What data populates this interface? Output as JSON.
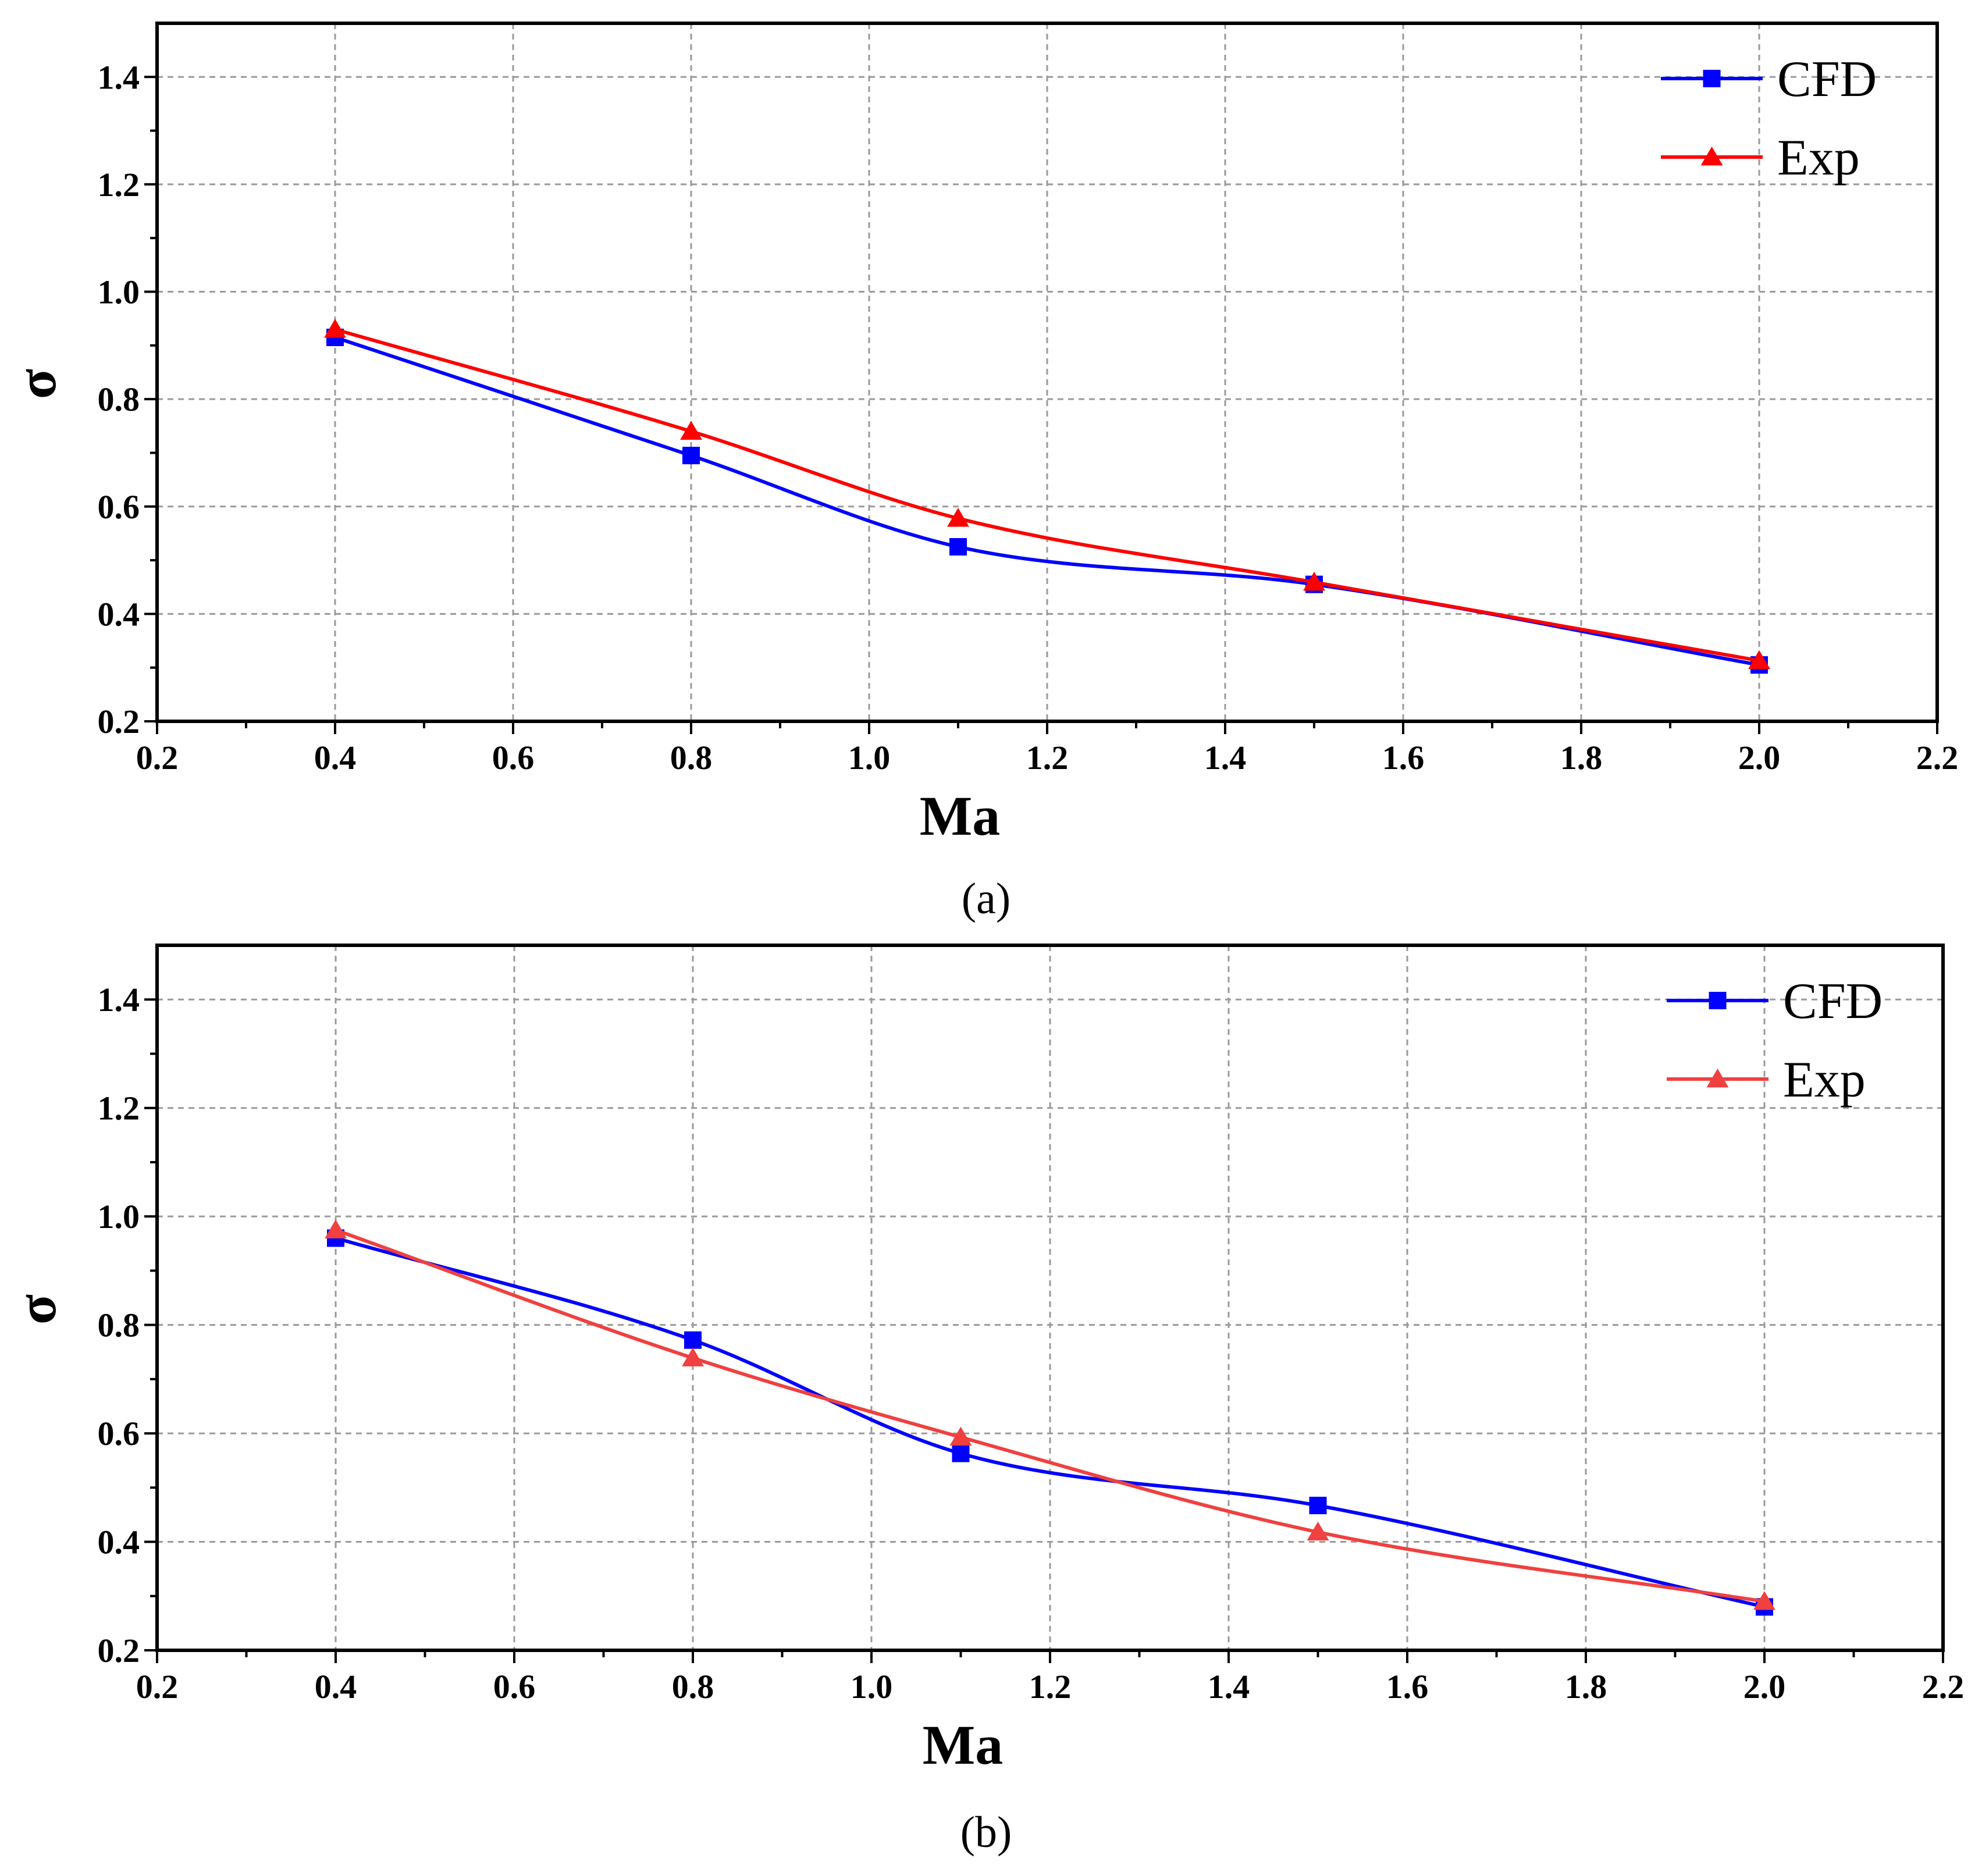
{
  "chart_data": [
    {
      "type": "line",
      "panel_label": "(a)",
      "xlabel": "Ma",
      "ylabel": "σ",
      "xlim": [
        0.2,
        2.2
      ],
      "ylim": [
        0.2,
        1.5
      ],
      "x_ticks": [
        0.2,
        0.4,
        0.6,
        0.8,
        1.0,
        1.2,
        1.4,
        1.6,
        1.8,
        2.0,
        2.2
      ],
      "x_tick_labels": [
        "0.2",
        "0.4",
        "0.6",
        "0.8",
        "1.0",
        "1.2",
        "1.4",
        "1.6",
        "1.8",
        "2.0",
        "2.2"
      ],
      "y_ticks": [
        0.2,
        0.4,
        0.6,
        0.8,
        1.0,
        1.2,
        1.4
      ],
      "y_tick_labels": [
        "0.2",
        "0.4",
        "0.6",
        "0.8",
        "1.0",
        "1.2",
        "1.4"
      ],
      "grid": true,
      "legend_position": "top-right",
      "series": [
        {
          "name": "CFD",
          "color": "#0000ff",
          "marker": "square",
          "x": [
            0.4,
            0.8,
            1.1,
            1.5,
            2.0
          ],
          "values": [
            0.915,
            0.695,
            0.525,
            0.455,
            0.305
          ]
        },
        {
          "name": "Exp",
          "color": "#ff0000",
          "marker": "triangle",
          "x": [
            0.4,
            0.8,
            1.1,
            1.5,
            2.0
          ],
          "values": [
            0.93,
            0.74,
            0.578,
            0.459,
            0.313
          ]
        }
      ]
    },
    {
      "type": "line",
      "panel_label": "(b)",
      "xlabel": "Ma",
      "ylabel": "σ",
      "xlim": [
        0.2,
        2.2
      ],
      "ylim": [
        0.2,
        1.5
      ],
      "x_ticks": [
        0.2,
        0.4,
        0.6,
        0.8,
        1.0,
        1.2,
        1.4,
        1.6,
        1.8,
        2.0,
        2.2
      ],
      "x_tick_labels": [
        "0.2",
        "0.4",
        "0.6",
        "0.8",
        "1.0",
        "1.2",
        "1.4",
        "1.6",
        "1.8",
        "2.0",
        "2.2"
      ],
      "y_ticks": [
        0.2,
        0.4,
        0.6,
        0.8,
        1.0,
        1.2,
        1.4
      ],
      "y_tick_labels": [
        "0.2",
        "0.4",
        "0.6",
        "0.8",
        "1.0",
        "1.2",
        "1.4"
      ],
      "grid": true,
      "legend_position": "top-right",
      "series": [
        {
          "name": "CFD",
          "color": "#0000ff",
          "marker": "square",
          "x": [
            0.4,
            0.8,
            1.1,
            1.5,
            2.0
          ],
          "values": [
            0.96,
            0.772,
            0.563,
            0.467,
            0.28
          ]
        },
        {
          "name": "Exp",
          "color": "#f04040",
          "marker": "triangle",
          "x": [
            0.4,
            0.8,
            1.1,
            1.5,
            2.0
          ],
          "values": [
            0.975,
            0.739,
            0.593,
            0.418,
            0.29
          ]
        }
      ]
    }
  ]
}
